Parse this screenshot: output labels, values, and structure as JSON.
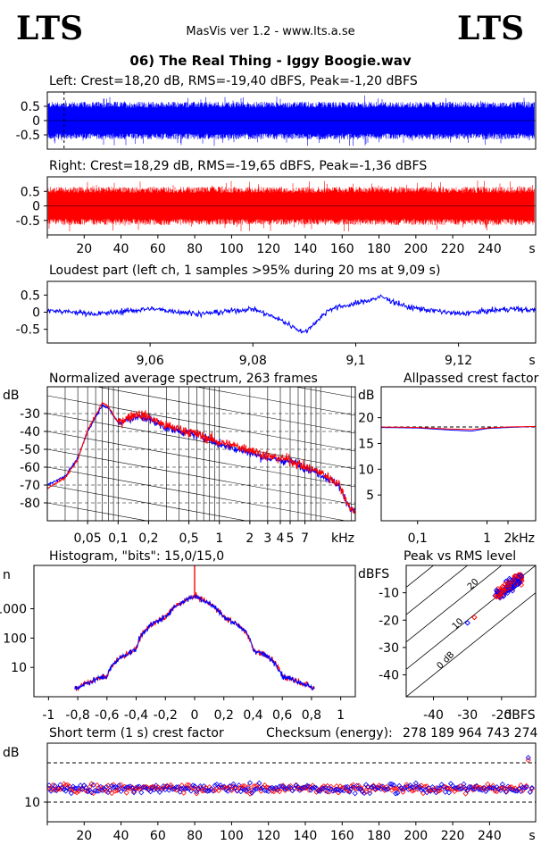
{
  "header": {
    "logo_left": "LTS",
    "logo_right": "LTS",
    "app_title": "MasVis ver 1.2 - www.lts.a.se",
    "track_title": "06) The Real Thing - Iggy Boogie.wav"
  },
  "colors": {
    "left": "#0000ff",
    "right": "#ff0000",
    "grid": "#000000"
  },
  "chart_data": [
    {
      "id": "left",
      "type": "line",
      "title": "Left: Crest=18,20 dB, RMS=-19,40 dBFS, Peak=-1,20 dBFS",
      "ylim": [
        -1,
        1
      ],
      "yticks": [
        "0.5",
        "0",
        "-0.5"
      ],
      "yticks_values": [
        0.5,
        0,
        -0.5
      ],
      "xlim": [
        0,
        265
      ],
      "marker_x": 9.09,
      "envelope": {
        "positive": 0.6,
        "negative": -0.6,
        "peak": 0.87
      }
    },
    {
      "id": "right",
      "type": "line",
      "title": "Right: Crest=18,29 dB, RMS=-19,65 dBFS, Peak=-1,36 dBFS",
      "ylim": [
        -1,
        1
      ],
      "yticks": [
        "0.5",
        "0",
        "-0.5"
      ],
      "yticks_values": [
        0.5,
        0,
        -0.5
      ],
      "xlim": [
        0,
        265
      ],
      "xticks": [
        "20",
        "40",
        "60",
        "80",
        "100",
        "120",
        "140",
        "160",
        "180",
        "200",
        "220",
        "240"
      ],
      "xticks_values": [
        20,
        40,
        60,
        80,
        100,
        120,
        140,
        160,
        180,
        200,
        220,
        240
      ],
      "xunit": "s"
    },
    {
      "id": "loudest",
      "type": "line",
      "title": "Loudest part (left  ch, 1 samples >95% during 20 ms at 9,09 s)",
      "ylim": [
        -0.9,
        0.9
      ],
      "yticks": [
        "0.5",
        "0",
        "-0.5"
      ],
      "yticks_values": [
        0.5,
        0,
        -0.5
      ],
      "xlim": [
        9.04,
        9.135
      ],
      "xticks": [
        "9,06",
        "9,08",
        "9,1",
        "9,12"
      ],
      "xticks_values": [
        9.06,
        9.08,
        9.1,
        9.12
      ],
      "xunit": "s",
      "x": [
        9.04,
        9.05,
        9.06,
        9.07,
        9.08,
        9.085,
        9.09,
        9.095,
        9.1,
        9.105,
        9.11,
        9.12,
        9.13,
        9.135
      ],
      "values": [
        0.05,
        -0.05,
        0.1,
        -0.05,
        0.1,
        -0.2,
        -0.6,
        0.1,
        0.25,
        0.45,
        0.15,
        -0.05,
        0.1,
        0.05
      ]
    },
    {
      "id": "spectrum",
      "type": "line",
      "title": "Normalized average spectrum, 263 frames",
      "ylabel": "dB",
      "ylim": [
        -90,
        -15
      ],
      "yticks": [
        "-30",
        "-40",
        "-50",
        "-60",
        "-70",
        "-80"
      ],
      "yticks_values": [
        -30,
        -40,
        -50,
        -60,
        -70,
        -80
      ],
      "xscale": "log",
      "xlim": [
        0.02,
        22
      ],
      "xticks": [
        "0,05",
        "0,1",
        "0,2",
        "0,5",
        "1",
        "2",
        "3",
        "4",
        "5",
        "7"
      ],
      "xticks_values": [
        0.05,
        0.1,
        0.2,
        0.5,
        1,
        2,
        3,
        4,
        5,
        7
      ],
      "xunit": "kHz",
      "series": [
        {
          "color": "blue",
          "x": [
            0.02,
            0.03,
            0.04,
            0.05,
            0.06,
            0.07,
            0.08,
            0.1,
            0.15,
            0.2,
            0.3,
            0.5,
            0.7,
            1,
            2,
            3,
            5,
            7,
            10,
            15,
            20
          ],
          "values": [
            -70,
            -65,
            -55,
            -40,
            -32,
            -25,
            -27,
            -35,
            -32,
            -33,
            -38,
            -41,
            -43,
            -47,
            -52,
            -55,
            -57,
            -60,
            -64,
            -70,
            -84
          ]
        },
        {
          "color": "red",
          "x": [
            0.02,
            0.03,
            0.04,
            0.05,
            0.06,
            0.07,
            0.08,
            0.1,
            0.15,
            0.2,
            0.3,
            0.5,
            0.7,
            1,
            2,
            3,
            5,
            7,
            10,
            15,
            20
          ],
          "values": [
            -72,
            -66,
            -56,
            -39,
            -31,
            -24,
            -26,
            -35,
            -30,
            -32,
            -37,
            -40,
            -43,
            -46,
            -50,
            -54,
            -56,
            -60,
            -63,
            -69,
            -84
          ]
        }
      ]
    },
    {
      "id": "allpass",
      "type": "line",
      "title": "Allpassed crest factor",
      "ylabel": "dB",
      "ylim": [
        0,
        26
      ],
      "yticks": [
        "20",
        "15",
        "10",
        "5"
      ],
      "yticks_values": [
        20,
        15,
        10,
        5
      ],
      "xscale": "log",
      "xlim": [
        0.03,
        5
      ],
      "xticks": [
        "0,1",
        "1",
        "2"
      ],
      "xticks_values": [
        0.1,
        1,
        2
      ],
      "xunit": "kHz",
      "reference": 18.2,
      "series": [
        {
          "color": "blue",
          "x": [
            0.03,
            0.1,
            0.3,
            0.6,
            1,
            2,
            5
          ],
          "values": [
            18.1,
            18.0,
            17.6,
            17.4,
            17.9,
            18.1,
            18.3
          ]
        },
        {
          "color": "red",
          "x": [
            0.03,
            0.1,
            0.3,
            0.6,
            1,
            2,
            5
          ],
          "values": [
            18.2,
            18.1,
            17.8,
            17.7,
            18.0,
            18.2,
            18.3
          ]
        }
      ]
    },
    {
      "id": "histogram",
      "type": "line",
      "title": "Histogram, \"bits\": 15,0/15,0",
      "ylabel": "n",
      "yscale": "log",
      "ylim": [
        1,
        30000
      ],
      "yticks": [
        "1000",
        "100",
        "10"
      ],
      "yticks_values": [
        1000,
        100,
        10
      ],
      "xlim": [
        -1.1,
        1.1
      ],
      "xticks": [
        "-1",
        "-0,8",
        "-0,6",
        "-0,4",
        "-0,2",
        "0",
        "0,2",
        "0,4",
        "0,6",
        "0,8",
        "1"
      ],
      "xticks_values": [
        -1,
        -0.8,
        -0.6,
        -0.4,
        -0.2,
        0,
        0.2,
        0.4,
        0.6,
        0.8,
        1
      ],
      "x": [
        -0.8,
        -0.6,
        -0.4,
        -0.2,
        -0.1,
        0,
        0.1,
        0.2,
        0.4,
        0.6,
        0.8
      ],
      "values": [
        2,
        5,
        40,
        500,
        1500,
        2700,
        1500,
        500,
        40,
        5,
        2
      ],
      "spike": {
        "x": 0,
        "value": 30000
      }
    },
    {
      "id": "peak_rms",
      "type": "scatter",
      "title": "Peak vs RMS level",
      "ylabel": "dBFS",
      "xunit": "dBFS",
      "xlim": [
        -48,
        -10
      ],
      "ylim": [
        -48,
        0
      ],
      "yticks": [
        "-10",
        "-20",
        "-30",
        "-40"
      ],
      "yticks_values": [
        -10,
        -20,
        -30,
        -40
      ],
      "xticks": [
        "-40",
        "-30",
        "-20"
      ],
      "xticks_values": [
        -40,
        -30,
        -20
      ],
      "diagonals": [
        "40",
        "30",
        "20",
        "10",
        "0 dB"
      ],
      "diagonal_values": [
        40,
        30,
        20,
        10,
        0
      ],
      "cluster": {
        "x_range": [
          -22,
          -14
        ],
        "y_range": [
          -12,
          -3
        ]
      },
      "outliers": [
        {
          "x": -28,
          "y": -19,
          "color": "red"
        },
        {
          "x": -30,
          "y": -21,
          "color": "blue"
        }
      ]
    },
    {
      "id": "short_term",
      "type": "scatter",
      "title": "Short term (1 s) crest factor",
      "checksum_label": "Checksum (energy):",
      "checksum_value": "278 189 964 743 274",
      "ylabel": "dB",
      "ylim": [
        5,
        25
      ],
      "yticks": [
        "10"
      ],
      "yticks_values": [
        10
      ],
      "dashed": [
        10,
        20
      ],
      "xlim": [
        0,
        265
      ],
      "xticks": [
        "20",
        "40",
        "60",
        "80",
        "100",
        "120",
        "140",
        "160",
        "180",
        "200",
        "220",
        "240"
      ],
      "xticks_values": [
        20,
        40,
        60,
        80,
        100,
        120,
        140,
        160,
        180,
        200,
        220,
        240
      ],
      "xunit": "s",
      "mean": 17.5,
      "spread": 2.5,
      "points_count": 263
    }
  ]
}
